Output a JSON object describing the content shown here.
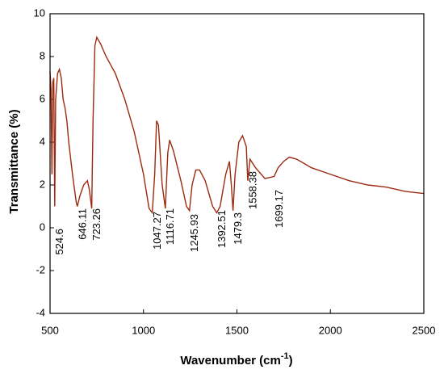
{
  "chart_data": {
    "type": "line",
    "x_label": {
      "text": "Wavenumber (cm",
      "superscript": "-1",
      "close": ")"
    },
    "y_label": "Transmittance (%)",
    "xlim": [
      500,
      2500
    ],
    "ylim": [
      -4,
      10
    ],
    "xticks": [
      500,
      1000,
      1500,
      2000,
      2500
    ],
    "yticks": [
      -4,
      -2,
      0,
      2,
      4,
      6,
      8,
      10
    ],
    "x": [
      500,
      505,
      510,
      515,
      520,
      525,
      530,
      540,
      550,
      560,
      570,
      580,
      590,
      600,
      620,
      640,
      646,
      660,
      680,
      700,
      710,
      723,
      730,
      740,
      750,
      770,
      800,
      850,
      900,
      950,
      1000,
      1030,
      1047,
      1060,
      1070,
      1080,
      1100,
      1117,
      1130,
      1140,
      1160,
      1200,
      1230,
      1246,
      1260,
      1280,
      1300,
      1330,
      1370,
      1392,
      1410,
      1440,
      1460,
      1470,
      1479,
      1490,
      1510,
      1530,
      1550,
      1558,
      1570,
      1600,
      1650,
      1699,
      1720,
      1750,
      1780,
      1820,
      1900,
      2000,
      2100,
      2200,
      2300,
      2400,
      2500
    ],
    "series": [
      {
        "color": "#9c2a10",
        "values": [
          7.3,
          6.5,
          2.5,
          6.8,
          7.0,
          1.0,
          6.0,
          7.2,
          7.4,
          7.0,
          6.0,
          5.6,
          5.0,
          4.0,
          2.5,
          1.2,
          1.0,
          1.5,
          2.0,
          2.2,
          1.8,
          0.9,
          5.0,
          8.5,
          8.9,
          8.6,
          8.0,
          7.2,
          6.0,
          4.5,
          2.5,
          0.9,
          0.7,
          2.5,
          5.0,
          4.8,
          2.0,
          0.9,
          3.5,
          4.1,
          3.6,
          2.2,
          1.0,
          0.8,
          2.0,
          2.7,
          2.7,
          2.2,
          1.0,
          0.7,
          1.0,
          2.5,
          3.1,
          2.0,
          0.8,
          2.5,
          4.0,
          4.3,
          3.8,
          2.2,
          3.2,
          2.8,
          2.3,
          2.4,
          2.8,
          3.1,
          3.3,
          3.2,
          2.8,
          2.5,
          2.2,
          2.0,
          1.9,
          1.7,
          1.6
        ]
      }
    ],
    "annotations": [
      524.6,
      646.11,
      723.26,
      1047.27,
      1116.71,
      1245.93,
      1392.51,
      1479.3,
      1558.38,
      1699.17
    ]
  }
}
